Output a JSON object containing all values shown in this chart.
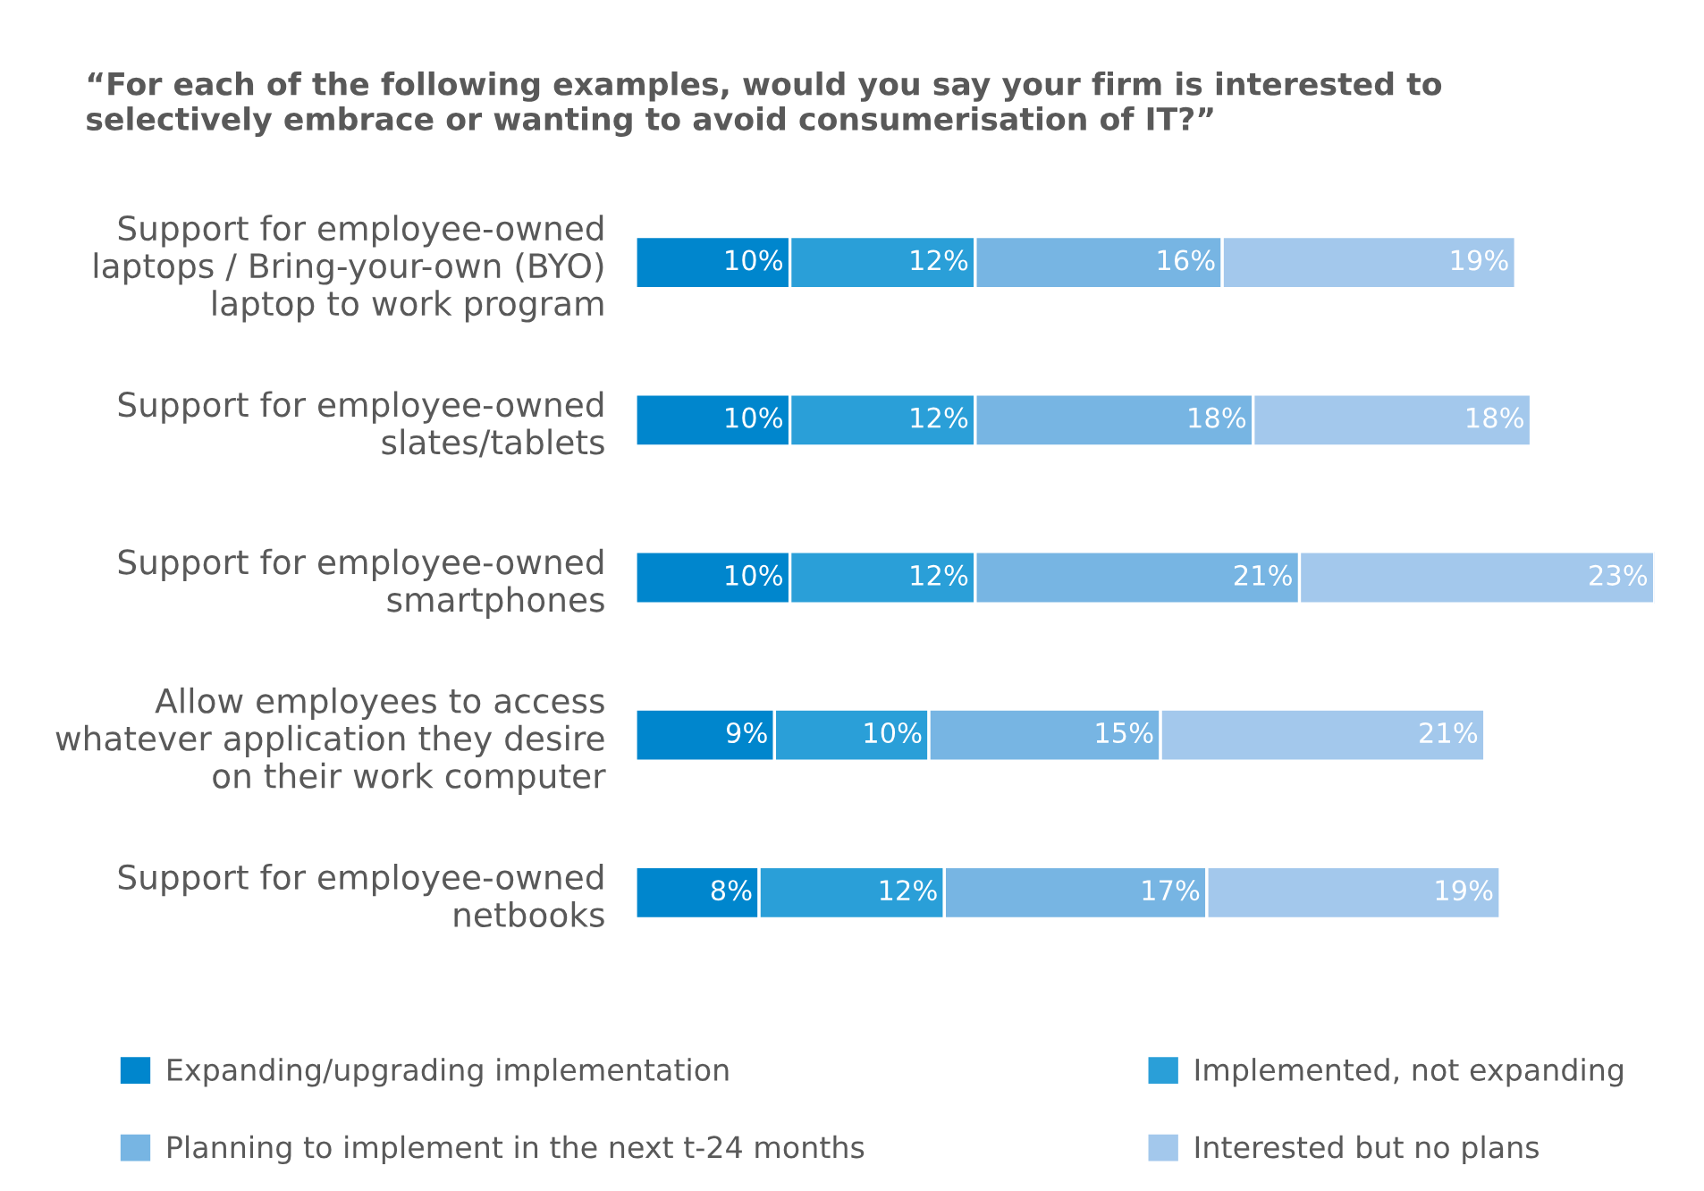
{
  "chart_data": {
    "type": "bar",
    "orientation": "horizontal",
    "stacked": true,
    "title": "“For each of the following examples, would you say your firm is interested to\nselectively embrace or wanting to avoid consumerisation of IT?”",
    "categories": [
      "Support for employee-owned\nlaptops / Bring-your-own (BYO)\nlaptop to work program",
      "Support for employee-owned\nslates/tablets",
      "Support for employee-owned\nsmartphones",
      "Allow employees to access\nwhatever application they desire\non their work computer",
      "Support for employee-owned\nnetbooks"
    ],
    "series": [
      {
        "name": "Expanding/upgrading implementation",
        "color": "#0086cd",
        "values": [
          10,
          10,
          10,
          9,
          8
        ],
        "value_labels": [
          "10%",
          "10%",
          "10%",
          "9%",
          "8%"
        ]
      },
      {
        "name": "Implemented, not expanding",
        "color": "#2a9fd8",
        "values": [
          12,
          12,
          12,
          10,
          12
        ],
        "value_labels": [
          "12%",
          "12%",
          "12%",
          "10%",
          "12%"
        ]
      },
      {
        "name": "Planning to implement in the next t-24 months",
        "color": "#77b5e3",
        "values": [
          16,
          18,
          21,
          15,
          17
        ],
        "value_labels": [
          "16%",
          "18%",
          "21%",
          "15%",
          "17%"
        ]
      },
      {
        "name": "Interested but no plans",
        "color": "#a3c8ec",
        "values": [
          19,
          18,
          23,
          21,
          19
        ],
        "value_labels": [
          "19%",
          "18%",
          "23%",
          "21%",
          "19%"
        ]
      }
    ],
    "legend": "bottom",
    "grid": false
  }
}
